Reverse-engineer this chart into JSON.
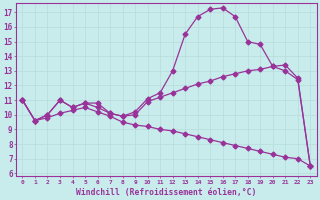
{
  "bg_color": "#c8ecec",
  "line_color": "#993399",
  "grid_color": "#b8dcdc",
  "xlabel": "Windchill (Refroidissement éolien,°C)",
  "xlim": [
    -0.5,
    23.5
  ],
  "ylim": [
    5.8,
    17.6
  ],
  "yticks": [
    6,
    7,
    8,
    9,
    10,
    11,
    12,
    13,
    14,
    15,
    16,
    17
  ],
  "xticks": [
    0,
    1,
    2,
    3,
    4,
    5,
    6,
    7,
    8,
    9,
    10,
    11,
    12,
    13,
    14,
    15,
    16,
    17,
    18,
    19,
    20,
    21,
    22,
    23
  ],
  "curve1_x": [
    0,
    1,
    2,
    3,
    4,
    5,
    6,
    7,
    8,
    9,
    10,
    11,
    12,
    13,
    14,
    15,
    16,
    17,
    18,
    19,
    20,
    21,
    22,
    23
  ],
  "curve1_y": [
    11.0,
    9.6,
    10.0,
    11.0,
    10.5,
    10.8,
    10.8,
    10.1,
    9.9,
    10.2,
    11.1,
    11.5,
    13.0,
    15.5,
    16.7,
    17.2,
    17.3,
    16.7,
    15.0,
    14.8,
    13.3,
    13.0,
    12.4,
    6.5
  ],
  "curve2_x": [
    0,
    1,
    2,
    3,
    4,
    5,
    6,
    7,
    8,
    9,
    10,
    11,
    12,
    13,
    14,
    15,
    16,
    17,
    18,
    19,
    20,
    21,
    22,
    23
  ],
  "curve2_y": [
    11.0,
    9.6,
    10.0,
    11.0,
    10.5,
    10.8,
    10.5,
    10.1,
    9.9,
    10.0,
    10.9,
    11.2,
    11.5,
    11.8,
    12.1,
    12.3,
    12.6,
    12.8,
    13.0,
    13.1,
    13.3,
    13.4,
    12.5,
    6.5
  ],
  "curve3_x": [
    0,
    1,
    2,
    3,
    4,
    5,
    6,
    7,
    8,
    9,
    10,
    11,
    12,
    13,
    14,
    15,
    16,
    17,
    18,
    19,
    20,
    21,
    22,
    23
  ],
  "curve3_y": [
    11.0,
    9.6,
    9.8,
    10.1,
    10.3,
    10.5,
    10.2,
    9.9,
    9.5,
    9.3,
    9.2,
    9.0,
    8.9,
    8.7,
    8.5,
    8.3,
    8.1,
    7.9,
    7.7,
    7.5,
    7.3,
    7.1,
    7.0,
    6.5
  ]
}
